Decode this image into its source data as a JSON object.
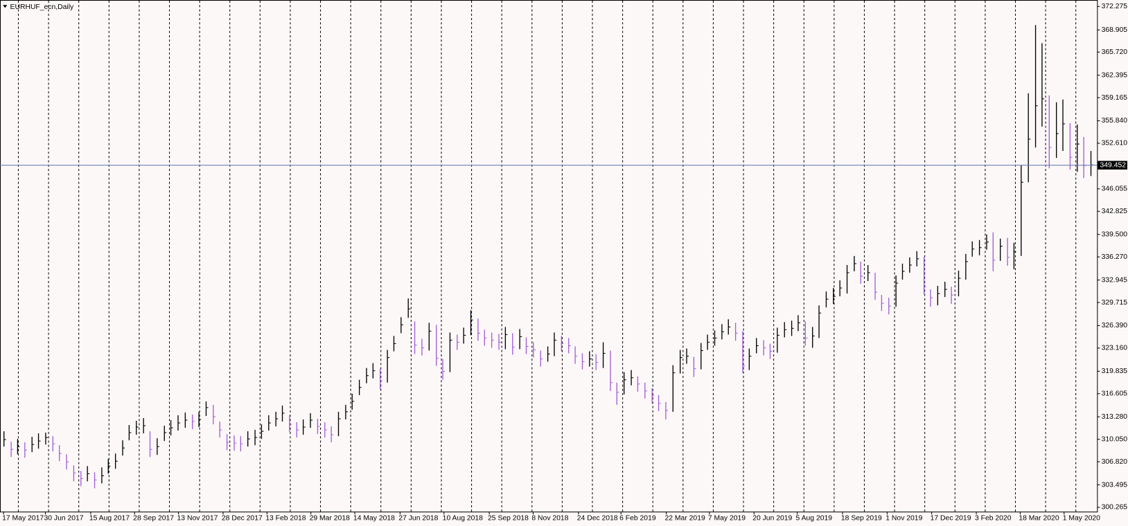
{
  "chart_data": {
    "type": "ohlc",
    "title": "EURHUF_ecn,Daily",
    "up_color": "#000000",
    "down_color": "#a35ed8",
    "price_line_color": "#6e7fb8",
    "ylim": [
      299.645,
      373.205
    ],
    "yticks": [
      372.275,
      368.905,
      {
        "value": 365.72,
        "label": "365.720"
      },
      362.395,
      359.165,
      {
        "value": 355.84,
        "label": "355.840"
      },
      {
        "value": 352.61,
        "label": "352.610"
      },
      346.055,
      342.825,
      {
        "value": 339.5,
        "label": "339.500"
      },
      {
        "value": 336.27,
        "label": "336.270"
      },
      332.945,
      329.715,
      {
        "value": 326.39,
        "label": "326.390"
      },
      {
        "value": 323.16,
        "label": "323.160"
      },
      319.835,
      316.605,
      {
        "value": 313.28,
        "label": "313.280"
      },
      {
        "value": 310.05,
        "label": "310.050"
      },
      {
        "value": 306.82,
        "label": "306.820"
      },
      303.495,
      300.265
    ],
    "current_price": 349.452,
    "xticks": [
      {
        "value": 0,
        "label": "17 May 2017"
      },
      {
        "value": 6.0,
        "label": "30 Jun 2017"
      },
      {
        "value": 12.5,
        "label": "15 Aug 2017"
      },
      {
        "value": 18.8,
        "label": "28 Sep 2017"
      },
      {
        "value": 25.1,
        "label": "13 Nov 2017"
      },
      {
        "value": 31.5,
        "label": "28 Dec 2017"
      },
      {
        "value": 37.8,
        "label": "13 Feb 2018"
      },
      {
        "value": 44.1,
        "label": "29 Mar 2018"
      },
      {
        "value": 50.4,
        "label": "14 May 2018"
      },
      {
        "value": 56.9,
        "label": "27 Jun 2018"
      },
      {
        "value": 63.2,
        "label": "10 Aug 2018"
      },
      {
        "value": 69.7,
        "label": "25 Sep 2018"
      },
      {
        "value": 76.0,
        "label": "8 Nov 2018"
      },
      {
        "value": 82.5,
        "label": "24 Dec 2018"
      },
      {
        "value": 88.6,
        "label": "6 Feb 2019"
      },
      {
        "value": 95.1,
        "label": "22 Mar 2019"
      },
      {
        "value": 101.3,
        "label": "7 May 2019"
      },
      {
        "value": 107.7,
        "label": "20 Jun 2019"
      },
      {
        "value": 113.9,
        "label": "5 Aug 2019"
      },
      {
        "value": 120.4,
        "label": "18 Sep 2019"
      },
      {
        "value": 126.8,
        "label": "1 Nov 2019"
      },
      {
        "value": 133.2,
        "label": "17 Dec 2019"
      },
      {
        "value": 139.6,
        "label": "3 Feb 2020"
      },
      {
        "value": 145.9,
        "label": "18 Mar 2020"
      },
      {
        "value": 152.2,
        "label": "1 May 2020"
      }
    ],
    "high": [
      311.2,
      309.7,
      310.1,
      309.6,
      310.4,
      310.9,
      311.0,
      310.5,
      309.2,
      307.9,
      306.3,
      305.5,
      306.2,
      305.3,
      306.0,
      307.2,
      308.0,
      309.9,
      312.1,
      312.7,
      313.1,
      311.2,
      310.2,
      312.0,
      312.8,
      313.5,
      313.9,
      313.6,
      314.0,
      315.5,
      315.0,
      312.6,
      310.8,
      310.6,
      310.5,
      311.2,
      311.4,
      312.2,
      313.5,
      314.0,
      314.9,
      313.5,
      312.5,
      312.9,
      313.8,
      313.0,
      312.5,
      311.9,
      314.0,
      315.0,
      316.6,
      318.6,
      320.3,
      321.0,
      320.2,
      322.9,
      324.9,
      327.6,
      330.3,
      327.0,
      324.5,
      326.8,
      326.5,
      321.6,
      325.4,
      325.1,
      326.1,
      328.6,
      327.4,
      325.8,
      325.4,
      325.2,
      326.2,
      325.3,
      325.9,
      324.7,
      324.0,
      322.8,
      323.4,
      325.4,
      324.9,
      324.6,
      323.4,
      322.4,
      322.7,
      322.3,
      324.0,
      322.8,
      318.2,
      319.7,
      320.0,
      319.1,
      318.2,
      317.4,
      316.4,
      315.4,
      320.7,
      322.9,
      323.1,
      321.9,
      323.9,
      325.1,
      325.7,
      326.6,
      327.3,
      326.8,
      325.6,
      323.1,
      324.6,
      324.3,
      323.8,
      326.1,
      326.9,
      327.1,
      327.9,
      327.0,
      326.2,
      329.3,
      331.3,
      331.8,
      332.9,
      335.1,
      336.4,
      335.6,
      335.1,
      334.0,
      330.8,
      330.4,
      333.6,
      335.3,
      336.2,
      337.1,
      336.3,
      331.6,
      332.1,
      332.7,
      332.0,
      334.3,
      336.7,
      338.5,
      338.7,
      339.5,
      339.8,
      338.9,
      339.0,
      338.3,
      349.5,
      359.8,
      369.6,
      367.0,
      359.5,
      358.5,
      358.9,
      355.5,
      355.3,
      353.5,
      351.5
    ],
    "low": [
      309.0,
      307.5,
      307.9,
      307.4,
      308.2,
      308.7,
      309.3,
      308.3,
      306.9,
      305.7,
      304.0,
      303.3,
      304.0,
      303.0,
      303.7,
      305.1,
      305.8,
      307.7,
      309.9,
      310.7,
      310.9,
      307.5,
      307.8,
      309.8,
      310.6,
      311.3,
      311.7,
      311.5,
      311.8,
      313.4,
      312.2,
      310.3,
      308.5,
      308.4,
      308.3,
      309.0,
      309.2,
      310.1,
      311.3,
      311.9,
      312.6,
      311.1,
      310.3,
      310.7,
      311.7,
      310.8,
      310.3,
      309.6,
      310.5,
      312.9,
      314.3,
      316.4,
      318.1,
      318.8,
      317.2,
      318.2,
      322.7,
      325.3,
      327.5,
      322.3,
      322.1,
      322.8,
      320.6,
      318.6,
      319.7,
      322.9,
      323.8,
      325.0,
      324.2,
      323.5,
      323.2,
      322.9,
      323.0,
      322.2,
      323.0,
      322.3,
      321.8,
      320.5,
      321.2,
      322.0,
      322.7,
      322.4,
      320.9,
      320.1,
      320.5,
      320.0,
      320.3,
      317.0,
      315.0,
      316.5,
      317.8,
      316.9,
      315.9,
      315.2,
      314.1,
      312.9,
      314.0,
      319.5,
      320.9,
      319.0,
      320.1,
      322.9,
      323.5,
      324.4,
      325.1,
      324.2,
      319.6,
      320.0,
      322.4,
      322.1,
      321.6,
      322.5,
      324.7,
      324.9,
      325.6,
      323.5,
      323.2,
      324.6,
      329.0,
      329.5,
      330.6,
      331.0,
      334.2,
      332.4,
      332.8,
      330.1,
      328.5,
      328.0,
      329.1,
      333.0,
      334.0,
      334.9,
      330.9,
      329.1,
      329.3,
      330.5,
      329.5,
      330.6,
      333.0,
      336.3,
      336.5,
      337.3,
      334.2,
      335.7,
      335.0,
      334.5,
      336.4,
      347.0,
      352.0,
      355.0,
      349.0,
      350.5,
      351.5,
      348.8,
      348.5,
      347.6,
      347.9
    ],
    "close": [
      310.0,
      308.6,
      309.0,
      308.5,
      309.3,
      309.8,
      310.3,
      309.4,
      308.0,
      306.8,
      305.2,
      304.4,
      305.1,
      304.2,
      304.8,
      306.2,
      306.9,
      308.8,
      311.0,
      311.8,
      312.0,
      308.6,
      309.0,
      311.0,
      311.7,
      312.4,
      312.8,
      312.6,
      312.9,
      314.6,
      313.3,
      311.4,
      309.6,
      309.5,
      309.4,
      310.1,
      310.3,
      311.2,
      312.4,
      313.0,
      313.8,
      312.2,
      311.4,
      311.8,
      312.8,
      311.9,
      311.4,
      310.7,
      313.0,
      314.0,
      315.5,
      317.5,
      319.2,
      319.9,
      318.5,
      321.8,
      323.8,
      326.5,
      328.8,
      323.6,
      323.2,
      325.6,
      321.7,
      319.8,
      324.3,
      324.0,
      325.0,
      327.2,
      325.3,
      324.6,
      324.3,
      324.0,
      325.1,
      323.3,
      324.8,
      323.4,
      322.9,
      321.6,
      322.3,
      324.3,
      323.8,
      323.5,
      322.0,
      321.2,
      321.6,
      321.1,
      322.4,
      318.2,
      316.8,
      318.6,
      318.9,
      318.0,
      317.0,
      316.3,
      315.2,
      314.2,
      319.6,
      321.8,
      322.0,
      320.2,
      322.8,
      324.0,
      324.6,
      325.5,
      326.2,
      325.3,
      320.6,
      322.0,
      323.5,
      323.2,
      322.7,
      325.0,
      325.8,
      326.0,
      326.8,
      324.6,
      324.9,
      328.2,
      330.2,
      330.6,
      331.8,
      334.0,
      335.3,
      333.5,
      334.0,
      331.2,
      329.6,
      329.2,
      332.5,
      334.2,
      335.1,
      336.0,
      332.0,
      330.4,
      331.0,
      331.6,
      330.8,
      333.2,
      335.6,
      337.4,
      337.6,
      338.4,
      335.8,
      337.8,
      336.2,
      337.0,
      347.0,
      353.2,
      358.0,
      359.0,
      352.0,
      354.0,
      355.4,
      350.6,
      352.5,
      349.4,
      349.5
    ]
  }
}
